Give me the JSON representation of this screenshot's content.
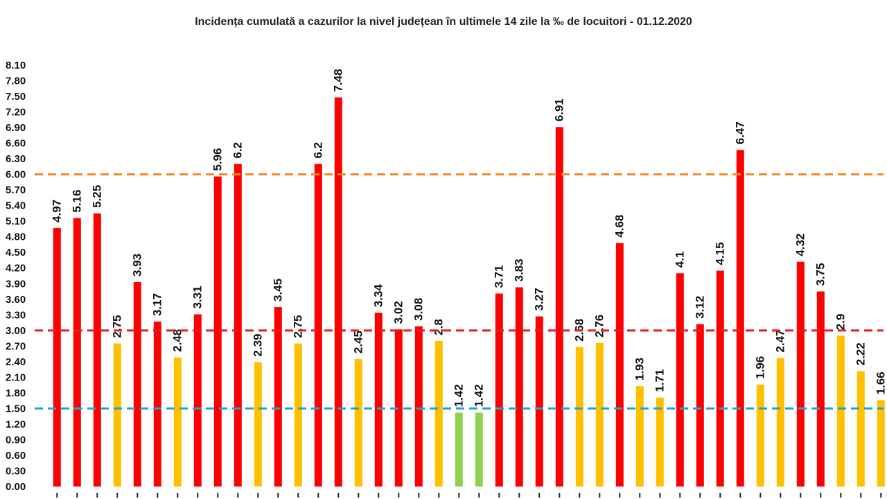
{
  "chart_data": {
    "type": "bar",
    "title": "Incidența cumulată a cazurilor la nivel județean în ultimele 14 zile la ‰ de locuitori - 01.12.2020",
    "xlabel": "",
    "ylabel": "",
    "ylim": [
      0,
      8.1
    ],
    "yticks": [
      "0.00",
      "0.30",
      "0.60",
      "0.90",
      "1.20",
      "1.50",
      "1.80",
      "2.10",
      "2.40",
      "2.70",
      "3.00",
      "3.30",
      "3.60",
      "3.90",
      "4.20",
      "4.50",
      "4.80",
      "5.10",
      "5.40",
      "5.70",
      "6.00",
      "6.30",
      "6.60",
      "6.90",
      "7.20",
      "7.50",
      "7.80",
      "8.10"
    ],
    "values": [
      4.97,
      5.16,
      5.25,
      2.75,
      3.93,
      3.17,
      2.48,
      3.31,
      5.96,
      6.2,
      2.39,
      3.45,
      2.75,
      6.2,
      7.48,
      2.45,
      3.34,
      3.02,
      3.08,
      2.8,
      1.42,
      1.42,
      3.71,
      3.83,
      3.27,
      6.91,
      2.68,
      2.76,
      4.68,
      1.93,
      1.71,
      4.1,
      3.12,
      4.15,
      6.47,
      1.96,
      2.47,
      4.32,
      3.75,
      2.9,
      2.22,
      1.66
    ],
    "labels": [
      "4.97",
      "5.16",
      "5.25",
      "2.75",
      "3.93",
      "3.17",
      "2.48",
      "3.31",
      "5.96",
      "6.2",
      "2.39",
      "3.45",
      "2.75",
      "6.2",
      "7.48",
      "2.45",
      "3.34",
      "3.02",
      "3.08",
      "2.8",
      "1.42",
      "1.42",
      "3.71",
      "3.83",
      "3.27",
      "6.91",
      "2.68",
      "2.76",
      "4.68",
      "1.93",
      "1.71",
      "4.1",
      "3.12",
      "4.15",
      "6.47",
      "1.96",
      "2.47",
      "4.32",
      "3.75",
      "2.9",
      "2.22",
      "1.66"
    ],
    "colors": [
      "red",
      "red",
      "red",
      "yellow",
      "red",
      "red",
      "yellow",
      "red",
      "red",
      "red",
      "yellow",
      "red",
      "yellow",
      "red",
      "red",
      "yellow",
      "red",
      "red",
      "red",
      "yellow",
      "green",
      "green",
      "red",
      "red",
      "red",
      "red",
      "yellow",
      "yellow",
      "red",
      "yellow",
      "yellow",
      "red",
      "red",
      "red",
      "red",
      "yellow",
      "yellow",
      "red",
      "red",
      "yellow",
      "yellow",
      "yellow"
    ],
    "reference_lines": [
      {
        "value": 6.0,
        "color": "#F08A24",
        "style": "dashed"
      },
      {
        "value": 3.0,
        "color": "#E41E1E",
        "style": "dashed"
      },
      {
        "value": 1.5,
        "color": "#1FA3D8",
        "style": "dashed"
      }
    ],
    "palette": {
      "red": "#FF0000",
      "yellow": "#FFC000",
      "green": "#92D050"
    },
    "grid": false,
    "legend": "none"
  }
}
